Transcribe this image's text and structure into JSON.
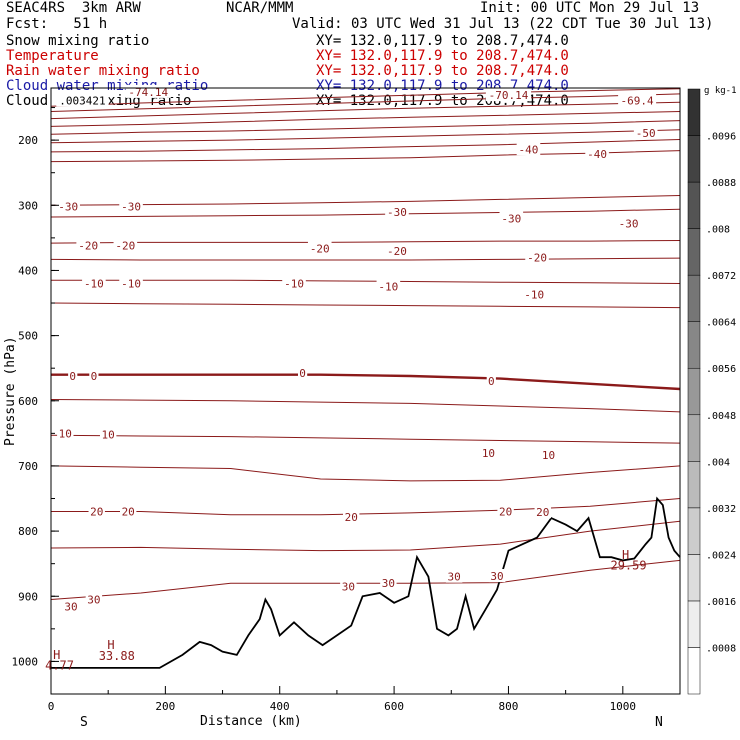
{
  "header": {
    "title": "SEAC4RS  3km ARW",
    "center": "NCAR/MMM",
    "init": "Init: 00 UTC Mon 29 Jul 13",
    "fcst": "Fcst:   51 h",
    "valid": "Valid: 03 UTC Wed 31 Jul 13 (22 CDT Tue 30 Jul 13)"
  },
  "fields": [
    {
      "name": "Snow mixing ratio",
      "xy": "XY= 132.0,117.9 to 208.7,474.0",
      "color": "#000000"
    },
    {
      "name": "Temperature",
      "xy": "XY= 132.0,117.9 to 208.7,474.0",
      "color": "#cc0000"
    },
    {
      "name": "Rain water mixing ratio",
      "xy": "XY= 132.0,117.9 to 208.7,474.0",
      "color": "#cc0000"
    },
    {
      "name": "Cloud water mixing ratio",
      "xy": "XY= 132.0,117.9 to 208.7,474.0",
      "color": "#1a1aa6"
    },
    {
      "name": "Cloud ice mixing ratio",
      "xy": "XY= 132.0,117.9 to 208.7,474.0",
      "color": "#000000"
    }
  ],
  "chart_data": {
    "type": "contour",
    "xlabel": "Distance (km)",
    "ylabel": "Pressure (hPa)",
    "xlim": [
      0,
      1100
    ],
    "ylim": [
      1050,
      120
    ],
    "x_ticks": [
      "0",
      "200",
      "400",
      "600",
      "800",
      "1000"
    ],
    "y_ticks": [
      "200",
      "300",
      "400",
      "500",
      "600",
      "700",
      "800",
      "900",
      "1000"
    ],
    "x_ends": {
      "left": "S",
      "right": "N"
    },
    "contour_color": "#8b1a1a",
    "temperature_contours": [
      {
        "level": -69.4,
        "p": [
          148,
          143,
          139,
          135,
          131,
          127,
          124,
          121
        ]
      },
      {
        "level": -65,
        "p": [
          156,
          152,
          148,
          144,
          140,
          136,
          133,
          129
        ]
      },
      {
        "level": -60,
        "p": [
          167,
          163,
          159,
          155,
          151,
          148,
          145,
          142
        ]
      },
      {
        "level": -55,
        "p": [
          179,
          176,
          172,
          168,
          165,
          162,
          159,
          156
        ]
      },
      {
        "level": -50,
        "p": [
          191,
          188,
          186,
          183,
          180,
          177,
          174,
          170
        ]
      },
      {
        "level": -45,
        "p": [
          204,
          202,
          200,
          197,
          194,
          191,
          188,
          184
        ]
      },
      {
        "level": -40,
        "p": [
          218,
          217,
          215,
          213,
          210,
          207,
          203,
          199
        ]
      },
      {
        "level": -35,
        "p": [
          233,
          232,
          231,
          229,
          227,
          223,
          220,
          216
        ]
      },
      {
        "level": -30,
        "p": [
          300,
          299,
          298,
          296,
          294,
          291,
          288,
          285
        ]
      },
      {
        "level": -25,
        "p": [
          318,
          317,
          316,
          315,
          313,
          311,
          309,
          306
        ]
      },
      {
        "level": -20,
        "p": [
          358,
          357,
          357,
          357,
          356,
          355,
          355,
          354
        ]
      },
      {
        "level": -15,
        "p": [
          383,
          384,
          384,
          384,
          384,
          383,
          382,
          381
        ]
      },
      {
        "level": -10,
        "p": [
          415,
          415,
          415,
          416,
          417,
          418,
          419,
          420
        ]
      },
      {
        "level": -5,
        "p": [
          450,
          451,
          452,
          453,
          454,
          455,
          456,
          457
        ]
      },
      {
        "level": 0,
        "p": [
          560,
          560,
          560,
          560,
          562,
          566,
          574,
          582
        ]
      },
      {
        "level": 5,
        "p": [
          598,
          599,
          600,
          602,
          604,
          608,
          612,
          617
        ]
      },
      {
        "level": 10,
        "p": [
          653,
          654,
          655,
          657,
          659,
          661,
          663,
          665
        ]
      },
      {
        "level": 15,
        "p": [
          700,
          702,
          704,
          720,
          723,
          722,
          710,
          700
        ]
      },
      {
        "level": 20,
        "p": [
          770,
          770,
          775,
          775,
          772,
          768,
          762,
          750
        ]
      },
      {
        "level": 25,
        "p": [
          826,
          825,
          828,
          830,
          829,
          820,
          800,
          785
        ]
      },
      {
        "level": 30,
        "p": [
          905,
          895,
          880,
          880,
          880,
          879,
          860,
          845
        ]
      }
    ],
    "contour_labels": [
      {
        "text": "-74.14",
        "x": 170,
        "p": 126
      },
      {
        "text": "-70.14",
        "x": 800,
        "p": 131
      },
      {
        "text": "-69.4",
        "x": 1025,
        "p": 139
      },
      {
        "text": "-50",
        "x": 1040,
        "p": 189
      },
      {
        "text": "-40",
        "x": 835,
        "p": 214
      },
      {
        "text": "-40",
        "x": 955,
        "p": 221
      },
      {
        "text": "-30",
        "x": 30,
        "p": 302
      },
      {
        "text": "-30",
        "x": 140,
        "p": 302
      },
      {
        "text": "-30",
        "x": 605,
        "p": 310
      },
      {
        "text": "-30",
        "x": 805,
        "p": 320
      },
      {
        "text": "-30",
        "x": 1010,
        "p": 328
      },
      {
        "text": "-20",
        "x": 65,
        "p": 362
      },
      {
        "text": "-20",
        "x": 130,
        "p": 362
      },
      {
        "text": "-20",
        "x": 470,
        "p": 366
      },
      {
        "text": "-20",
        "x": 605,
        "p": 370
      },
      {
        "text": "-20",
        "x": 850,
        "p": 380
      },
      {
        "text": "-10",
        "x": 75,
        "p": 420
      },
      {
        "text": "-10",
        "x": 140,
        "p": 420
      },
      {
        "text": "-10",
        "x": 425,
        "p": 420
      },
      {
        "text": "-10",
        "x": 590,
        "p": 425
      },
      {
        "text": "-10",
        "x": 845,
        "p": 437
      },
      {
        "text": "0",
        "x": 38,
        "p": 562
      },
      {
        "text": "0",
        "x": 75,
        "p": 562
      },
      {
        "text": "0",
        "x": 440,
        "p": 557
      },
      {
        "text": "0",
        "x": 770,
        "p": 570
      },
      {
        "text": "10",
        "x": 25,
        "p": 650
      },
      {
        "text": "10",
        "x": 100,
        "p": 652
      },
      {
        "text": "10",
        "x": 765,
        "p": 680
      },
      {
        "text": "10",
        "x": 870,
        "p": 683
      },
      {
        "text": "20",
        "x": 80,
        "p": 770
      },
      {
        "text": "20",
        "x": 135,
        "p": 770
      },
      {
        "text": "20",
        "x": 525,
        "p": 778
      },
      {
        "text": "20",
        "x": 795,
        "p": 770
      },
      {
        "text": "20",
        "x": 860,
        "p": 771
      },
      {
        "text": "30",
        "x": 35,
        "p": 916
      },
      {
        "text": "30",
        "x": 75,
        "p": 905
      },
      {
        "text": "30",
        "x": 520,
        "p": 885
      },
      {
        "text": "30",
        "x": 590,
        "p": 880
      },
      {
        "text": "30",
        "x": 705,
        "p": 870
      },
      {
        "text": "30",
        "x": 780,
        "p": 869
      },
      {
        "text": "30",
        "x": 780,
        "p": 869
      }
    ],
    "snow_contour_label": {
      "text": ".003421",
      "x": 55,
      "p": 139
    },
    "terrain": {
      "x": [
        0,
        190,
        230,
        260,
        280,
        300,
        325,
        345,
        365,
        375,
        385,
        400,
        425,
        450,
        475,
        500,
        525,
        545,
        575,
        600,
        625,
        640,
        660,
        675,
        695,
        710,
        725,
        740,
        760,
        780,
        800,
        825,
        850,
        875,
        900,
        920,
        940,
        960,
        980,
        1000,
        1020,
        1040,
        1050,
        1060,
        1070,
        1080,
        1090,
        1100
      ],
      "p": [
        1010,
        1010,
        990,
        970,
        975,
        985,
        990,
        960,
        935,
        905,
        920,
        960,
        940,
        960,
        975,
        960,
        945,
        900,
        895,
        910,
        900,
        840,
        870,
        950,
        960,
        950,
        900,
        950,
        920,
        890,
        830,
        820,
        810,
        780,
        790,
        800,
        780,
        840,
        840,
        845,
        842,
        820,
        810,
        750,
        760,
        810,
        830,
        840
      ]
    },
    "annotations": [
      {
        "text": "H",
        "x": 10,
        "p": 990
      },
      {
        "text": "4.77",
        "x": 15,
        "p": 1006
      },
      {
        "text": "H",
        "x": 105,
        "p": 975
      },
      {
        "text": "33.88",
        "x": 115,
        "p": 992
      },
      {
        "text": "H",
        "x": 1005,
        "p": 837
      },
      {
        "text": "29.59",
        "x": 1010,
        "p": 853
      }
    ],
    "colorbar": {
      "unit": "g kg-1",
      "ticks": [
        ".0096",
        ".0088",
        ".008",
        ".0072",
        ".0064",
        ".0056",
        ".0048",
        ".004",
        ".0032",
        ".0024",
        ".0016",
        ".0008"
      ],
      "levels": 13
    }
  }
}
